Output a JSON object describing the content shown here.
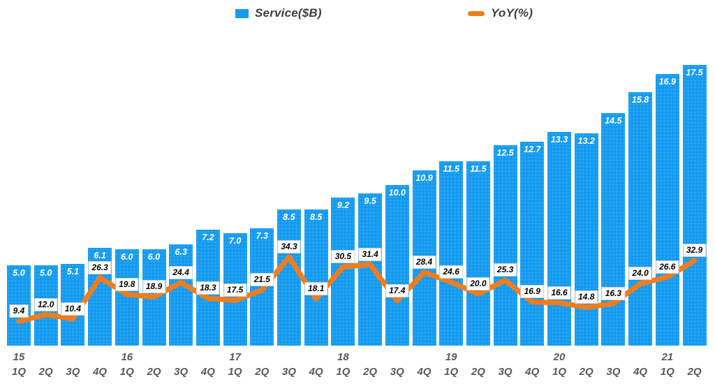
{
  "legend": {
    "items": [
      {
        "label": "Service($B)",
        "swatch": "square",
        "color": "#149bf0"
      },
      {
        "label": "YoY(%)",
        "swatch": "dash",
        "color": "#ef7d1e"
      }
    ]
  },
  "chart_data": {
    "type": "combo",
    "title": "",
    "categories": [
      "1Q",
      "2Q",
      "3Q",
      "4Q",
      "1Q",
      "2Q",
      "3Q",
      "4Q",
      "1Q",
      "2Q",
      "3Q",
      "4Q",
      "1Q",
      "2Q",
      "3Q",
      "4Q",
      "1Q",
      "2Q",
      "3Q",
      "4Q",
      "1Q",
      "2Q",
      "3Q",
      "4Q",
      "1Q",
      "2Q"
    ],
    "year_labels": [
      {
        "index": 0,
        "label": "15"
      },
      {
        "index": 4,
        "label": "16"
      },
      {
        "index": 8,
        "label": "17"
      },
      {
        "index": 12,
        "label": "18"
      },
      {
        "index": 16,
        "label": "19"
      },
      {
        "index": 20,
        "label": "20"
      },
      {
        "index": 24,
        "label": "21"
      }
    ],
    "series": [
      {
        "name": "Service($B)",
        "type": "bar",
        "color": "#149bf0",
        "values": [
          5.0,
          5.0,
          5.1,
          6.1,
          6.0,
          6.0,
          6.3,
          7.2,
          7.0,
          7.3,
          8.5,
          8.5,
          9.2,
          9.5,
          10.0,
          10.9,
          11.5,
          11.5,
          12.5,
          12.7,
          13.3,
          13.2,
          14.5,
          15.8,
          16.9,
          17.5
        ]
      },
      {
        "name": "YoY(%)",
        "type": "line",
        "color": "#ef7d1e",
        "values": [
          9.4,
          12.0,
          10.4,
          26.3,
          19.8,
          18.9,
          24.4,
          18.3,
          17.5,
          21.5,
          34.3,
          18.1,
          30.5,
          31.4,
          17.4,
          28.4,
          24.6,
          20.0,
          25.3,
          16.9,
          16.6,
          14.8,
          16.3,
          24.0,
          26.6,
          32.9
        ]
      }
    ],
    "value_labels_shown": true,
    "gridlines": false,
    "y_axes_hidden": true,
    "legend_position": "top"
  }
}
